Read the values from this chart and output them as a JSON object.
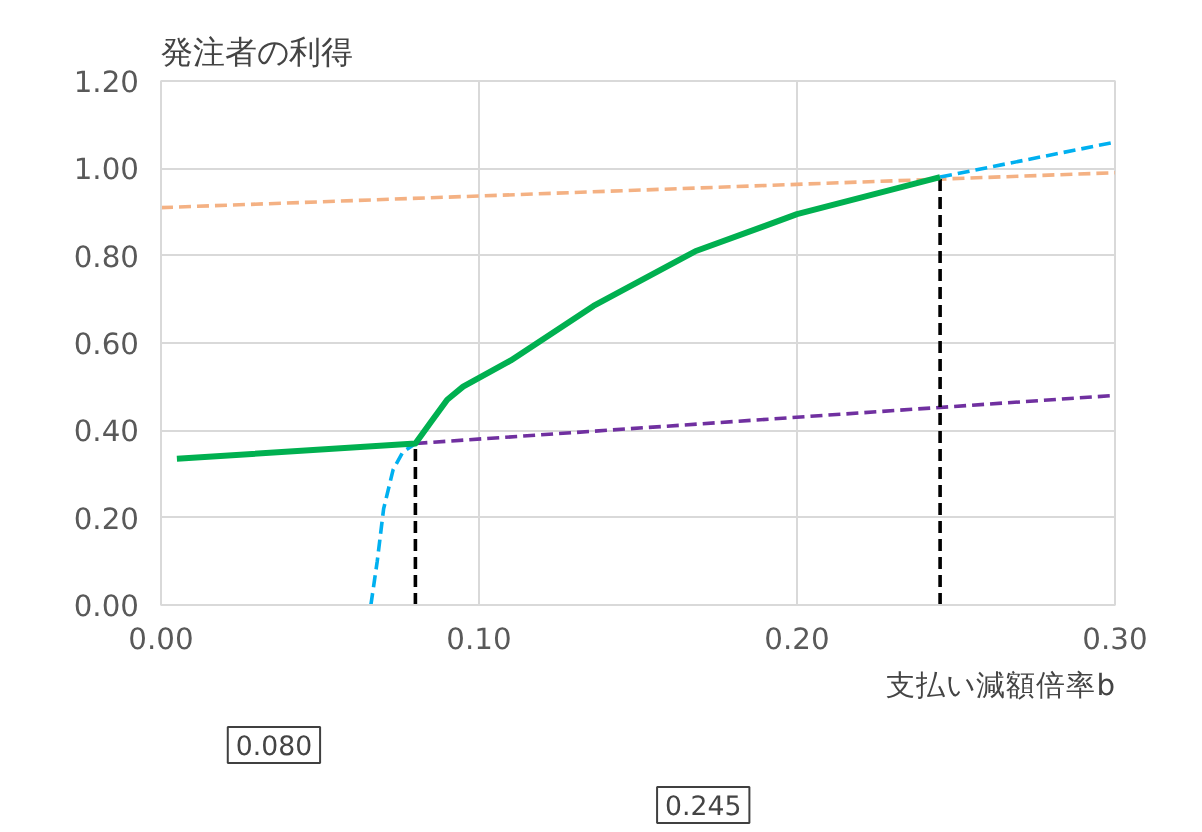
{
  "chart_data": {
    "type": "line",
    "title": "発注者の利得",
    "xlabel": "支払い減額倍率b",
    "xlim": [
      0,
      0.3
    ],
    "ylim": [
      0,
      1.2
    ],
    "xticks": [
      {
        "value": 0,
        "label": "0.00"
      },
      {
        "value": 0.1,
        "label": "0.10"
      },
      {
        "value": 0.2,
        "label": "0.20"
      },
      {
        "value": 0.3,
        "label": "0.30"
      }
    ],
    "yticks": [
      {
        "value": 0,
        "label": "0.00"
      },
      {
        "value": 0.2,
        "label": "0.20"
      },
      {
        "value": 0.4,
        "label": "0.40"
      },
      {
        "value": 0.6,
        "label": "0.60"
      },
      {
        "value": 0.8,
        "label": "0.80"
      },
      {
        "value": 1.0,
        "label": "1.00"
      },
      {
        "value": 1.2,
        "label": "1.20"
      }
    ],
    "grid": true,
    "marker": "none",
    "series": [
      {
        "color": "#f4b183",
        "line_style": "dashed",
        "x": [
          0,
          0.3
        ],
        "values": [
          0.91,
          0.99
        ]
      },
      {
        "color": "#7030a0",
        "line_style": "dashed",
        "x": [
          0.08,
          0.3
        ],
        "values": [
          0.37,
          0.48
        ]
      },
      {
        "color": "#00b0f0",
        "line_style": "dashed",
        "x": [
          0.066,
          0.068,
          0.07,
          0.073,
          0.076,
          0.08
        ],
        "values": [
          0,
          0.1,
          0.22,
          0.31,
          0.35,
          0.37
        ]
      },
      {
        "color": "#00b0f0",
        "line_style": "dashed",
        "x": [
          0.245,
          0.3
        ],
        "values": [
          0.98,
          1.06
        ]
      },
      {
        "color": "#000000",
        "line_style": "dashed",
        "x": [
          0.08,
          0.08
        ],
        "values": [
          0,
          0.37
        ]
      },
      {
        "color": "#000000",
        "line_style": "dashed",
        "x": [
          0.245,
          0.245
        ],
        "values": [
          0,
          0.98
        ]
      },
      {
        "color": "#00b050",
        "line_style": "solid",
        "x": [
          0.005,
          0.08,
          0.085,
          0.09,
          0.095,
          0.11,
          0.136,
          0.168,
          0.2,
          0.245
        ],
        "values": [
          0.335,
          0.37,
          0.42,
          0.47,
          0.5,
          0.56,
          0.685,
          0.81,
          0.895,
          0.98
        ]
      }
    ],
    "annotations": [
      "0.080",
      "0.245"
    ]
  }
}
